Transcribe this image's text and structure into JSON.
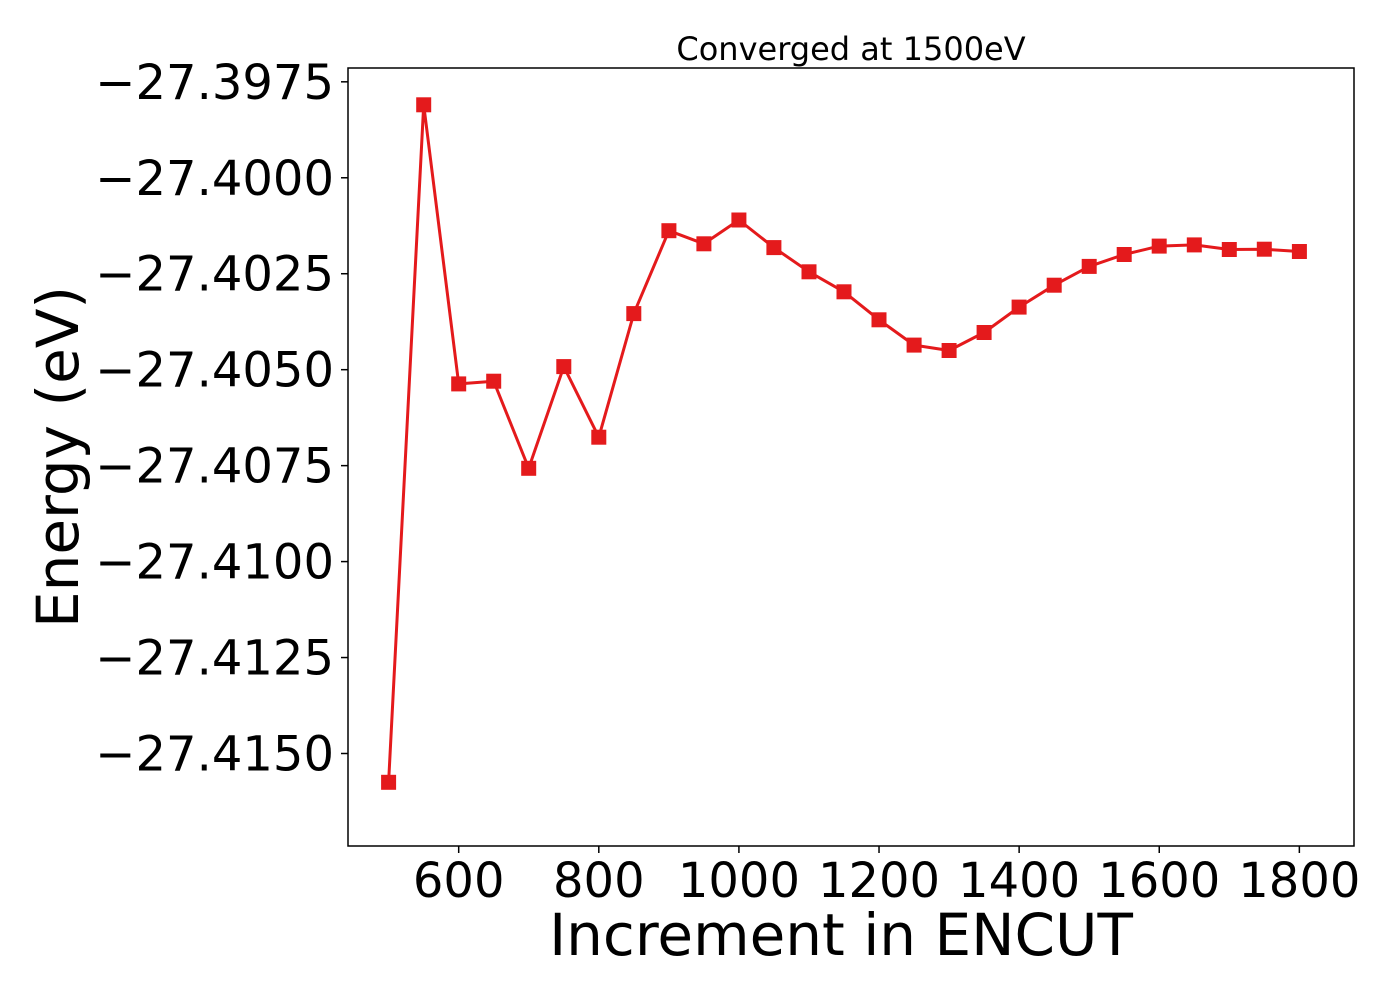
{
  "chart_data": {
    "type": "line",
    "title": "Converged at 1500eV",
    "xlabel": "Increment in ENCUT",
    "ylabel": "Energy (eV)",
    "x": [
      500,
      550,
      600,
      650,
      700,
      750,
      800,
      850,
      900,
      950,
      1000,
      1050,
      1100,
      1150,
      1200,
      1250,
      1300,
      1350,
      1400,
      1450,
      1500,
      1550,
      1600,
      1650,
      1700,
      1750,
      1800
    ],
    "series": [
      {
        "values": [
          -27.41575,
          -27.3981,
          -27.40537,
          -27.4053,
          -27.40757,
          -27.40492,
          -27.40676,
          -27.40354,
          -27.40138,
          -27.40172,
          -27.4011,
          -27.40182,
          -27.40245,
          -27.40297,
          -27.4037,
          -27.40436,
          -27.4045,
          -27.40403,
          -27.40337,
          -27.4028,
          -27.40231,
          -27.402,
          -27.40178,
          -27.40175,
          -27.40187,
          -27.40186,
          -27.40192
        ],
        "marker": "square",
        "color": "#e41a1c"
      }
    ],
    "xlim": [
      442,
      1878
    ],
    "ylim": [
      -27.41741,
      -27.39714
    ],
    "xticks": [
      600,
      800,
      1000,
      1200,
      1400,
      1600,
      1800
    ],
    "xtick_labels": [
      "600",
      "800",
      "1000",
      "1200",
      "1400",
      "1600",
      "1800"
    ],
    "yticks": [
      -27.3975,
      -27.4,
      -27.4025,
      -27.405,
      -27.4075,
      -27.41,
      -27.4125,
      -27.415
    ],
    "ytick_labels": [
      "−27.3975",
      "−27.4000",
      "−27.4025",
      "−27.4050",
      "−27.4075",
      "−27.4100",
      "−27.4125",
      "−27.4150"
    ],
    "grid": false,
    "legend": "none"
  }
}
